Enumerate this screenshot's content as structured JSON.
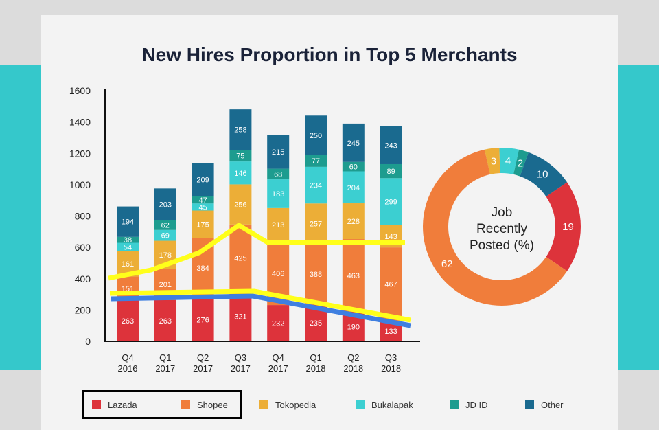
{
  "title": "New Hires Proportion in Top 5 Merchants",
  "colors": {
    "band": "#35c8cb",
    "card": "#f3f3f3",
    "highlight_line": "#ffff1a",
    "highlight_line_blue": "#3f7fe0"
  },
  "chart_data": [
    {
      "type": "bar",
      "stacked": true,
      "categories": [
        "Q4\n2016",
        "Q1\n2017",
        "Q2\n2017",
        "Q3\n2017",
        "Q4\n2017",
        "Q1\n2018",
        "Q2\n2018",
        "Q3\n2018"
      ],
      "ylim": [
        0,
        1600
      ],
      "yticks": [
        0,
        200,
        400,
        600,
        800,
        1000,
        1200,
        1400,
        1600
      ],
      "series": [
        {
          "name": "Lazada",
          "color": "#dd333b",
          "values": [
            263,
            263,
            276,
            321,
            232,
            235,
            190,
            133
          ]
        },
        {
          "name": "Shopee",
          "color": "#f07d3b",
          "values": [
            151,
            201,
            384,
            425,
            406,
            388,
            463,
            467
          ]
        },
        {
          "name": "Tokopedia",
          "color": "#ecae37",
          "values": [
            161,
            178,
            175,
            256,
            213,
            257,
            228,
            143
          ]
        },
        {
          "name": "Bukalapak",
          "color": "#3ccfd1",
          "values": [
            54,
            69,
            45,
            146,
            183,
            234,
            204,
            299
          ]
        },
        {
          "name": "JD ID",
          "color": "#1d9c8f",
          "values": [
            38,
            62,
            47,
            75,
            68,
            77,
            60,
            89
          ]
        },
        {
          "name": "Other",
          "color": "#1a6a8f",
          "values": [
            194,
            203,
            209,
            258,
            215,
            250,
            245,
            243
          ]
        }
      ]
    },
    {
      "type": "pie",
      "donut": true,
      "center_label": [
        "Job",
        "Recently",
        "Posted (%)"
      ],
      "slices": [
        {
          "series": "Tokopedia",
          "value": 3,
          "color": "#ecae37"
        },
        {
          "series": "Bukalapak",
          "value": 4,
          "color": "#3ccfd1"
        },
        {
          "series": "JD ID",
          "value": 2,
          "color": "#1d9c8f"
        },
        {
          "series": "Other",
          "value": 10,
          "color": "#1a6a8f"
        },
        {
          "series": "Lazada",
          "value": 19,
          "color": "#dd333b"
        },
        {
          "series": "Shopee",
          "value": 62,
          "color": "#f07d3b"
        }
      ]
    }
  ],
  "legend": [
    {
      "label": "Lazada",
      "color": "#dd333b"
    },
    {
      "label": "Shopee",
      "color": "#f07d3b"
    },
    {
      "label": "Tokopedia",
      "color": "#ecae37"
    },
    {
      "label": "Bukalapak",
      "color": "#3ccfd1"
    },
    {
      "label": "JD ID",
      "color": "#1d9c8f"
    },
    {
      "label": "Other",
      "color": "#1a6a8f"
    }
  ]
}
